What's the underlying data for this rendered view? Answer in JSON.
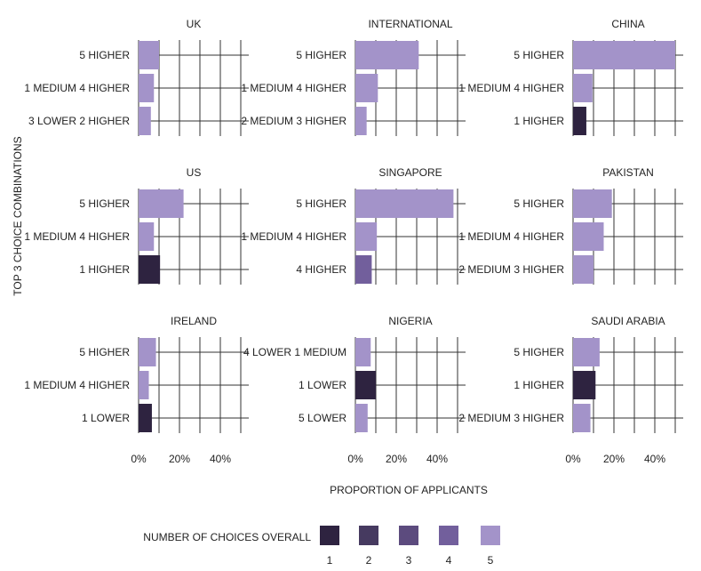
{
  "chart_data": {
    "type": "bar",
    "orientation": "horizontal",
    "xlabel": "PROPORTION OF APPLICANTS",
    "ylabel": "TOP 3 CHOICE COMBINATIONS",
    "xlim": [
      0,
      0.5
    ],
    "x_ticks": [
      0,
      0.2,
      0.4
    ],
    "x_tick_labels": [
      "0%",
      "20%",
      "40%"
    ],
    "grid": true,
    "legend": {
      "title": "NUMBER OF CHOICES OVERALL",
      "position": "bottom",
      "items": [
        {
          "label": "1",
          "color": "#2e2340"
        },
        {
          "label": "2",
          "color": "#463a60"
        },
        {
          "label": "3",
          "color": "#5c4b7e"
        },
        {
          "label": "4",
          "color": "#725f9c"
        },
        {
          "label": "5",
          "color": "#a393c9"
        }
      ]
    },
    "panels": [
      {
        "title": "UK",
        "bars": [
          {
            "label": "5 HIGHER",
            "value": 0.1,
            "choices": 5
          },
          {
            "label": "1 MEDIUM 4 HIGHER",
            "value": 0.075,
            "choices": 5
          },
          {
            "label": "3 LOWER 2 HIGHER",
            "value": 0.06,
            "choices": 5
          }
        ]
      },
      {
        "title": "INTERNATIONAL",
        "bars": [
          {
            "label": "5 HIGHER",
            "value": 0.31,
            "choices": 5
          },
          {
            "label": "1 MEDIUM 4 HIGHER",
            "value": 0.11,
            "choices": 5
          },
          {
            "label": "2 MEDIUM 3 HIGHER",
            "value": 0.055,
            "choices": 5
          }
        ]
      },
      {
        "title": "CHINA",
        "bars": [
          {
            "label": "5 HIGHER",
            "value": 0.52,
            "choices": 5
          },
          {
            "label": "1 MEDIUM 4 HIGHER",
            "value": 0.095,
            "choices": 5
          },
          {
            "label": "1 HIGHER",
            "value": 0.065,
            "choices": 1
          }
        ]
      },
      {
        "title": "US",
        "bars": [
          {
            "label": "5 HIGHER",
            "value": 0.22,
            "choices": 5
          },
          {
            "label": "1 MEDIUM 4 HIGHER",
            "value": 0.075,
            "choices": 5
          },
          {
            "label": "1 HIGHER",
            "value": 0.105,
            "choices": 1
          }
        ]
      },
      {
        "title": "SINGAPORE",
        "bars": [
          {
            "label": "5 HIGHER",
            "value": 0.48,
            "choices": 5
          },
          {
            "label": "1 MEDIUM 4 HIGHER",
            "value": 0.105,
            "choices": 5
          },
          {
            "label": "4 HIGHER",
            "value": 0.08,
            "choices": 4
          }
        ]
      },
      {
        "title": "PAKISTAN",
        "bars": [
          {
            "label": "5 HIGHER",
            "value": 0.19,
            "choices": 5
          },
          {
            "label": "1 MEDIUM 4 HIGHER",
            "value": 0.15,
            "choices": 5
          },
          {
            "label": "2 MEDIUM 3 HIGHER",
            "value": 0.1,
            "choices": 5
          }
        ]
      },
      {
        "title": "IRELAND",
        "bars": [
          {
            "label": "5 HIGHER",
            "value": 0.085,
            "choices": 5
          },
          {
            "label": "1 MEDIUM 4 HIGHER",
            "value": 0.05,
            "choices": 5
          },
          {
            "label": "1 LOWER",
            "value": 0.065,
            "choices": 1
          }
        ]
      },
      {
        "title": "NIGERIA",
        "bars": [
          {
            "label": "4 LOWER 1 MEDIUM",
            "value": 0.075,
            "choices": 5
          },
          {
            "label": "1 LOWER",
            "value": 0.1,
            "choices": 1
          },
          {
            "label": "5 LOWER",
            "value": 0.06,
            "choices": 5
          }
        ]
      },
      {
        "title": "SAUDI ARABIA",
        "bars": [
          {
            "label": "5 HIGHER",
            "value": 0.13,
            "choices": 5
          },
          {
            "label": "1 HIGHER",
            "value": 0.11,
            "choices": 1
          },
          {
            "label": "2 MEDIUM 3 HIGHER",
            "value": 0.085,
            "choices": 5
          }
        ]
      }
    ]
  }
}
